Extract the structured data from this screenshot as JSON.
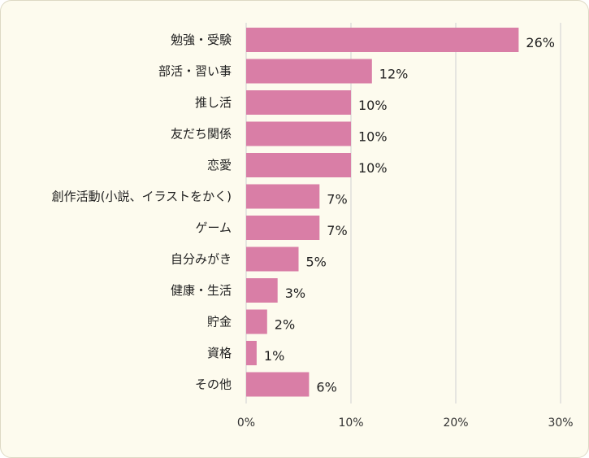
{
  "chart_data": {
    "type": "bar",
    "orientation": "horizontal",
    "categories": [
      "勉強・受験",
      "部活・習い事",
      "推し活",
      "友だち関係",
      "恋愛",
      "創作活動(小説、イラストをかく)",
      "ゲーム",
      "自分みがき",
      "健康・生活",
      "貯金",
      "資格",
      "その他"
    ],
    "values": [
      26,
      12,
      10,
      10,
      10,
      7,
      7,
      5,
      3,
      2,
      1,
      6
    ],
    "value_labels": [
      "26%",
      "12%",
      "10%",
      "10%",
      "10%",
      "7%",
      "7%",
      "5%",
      "3%",
      "2%",
      "1%",
      "6%"
    ],
    "xlim": [
      0,
      30
    ],
    "ticks": [
      0,
      10,
      20,
      30
    ],
    "tick_labels": [
      "0%",
      "10%",
      "20%",
      "30%"
    ],
    "grid": true,
    "title": "",
    "xlabel": "",
    "ylabel": "",
    "colors": {
      "bar": "#d97ea6",
      "grid": "#d9d9d9",
      "background": "#fdfbee",
      "border": "#ddd9c4"
    }
  }
}
